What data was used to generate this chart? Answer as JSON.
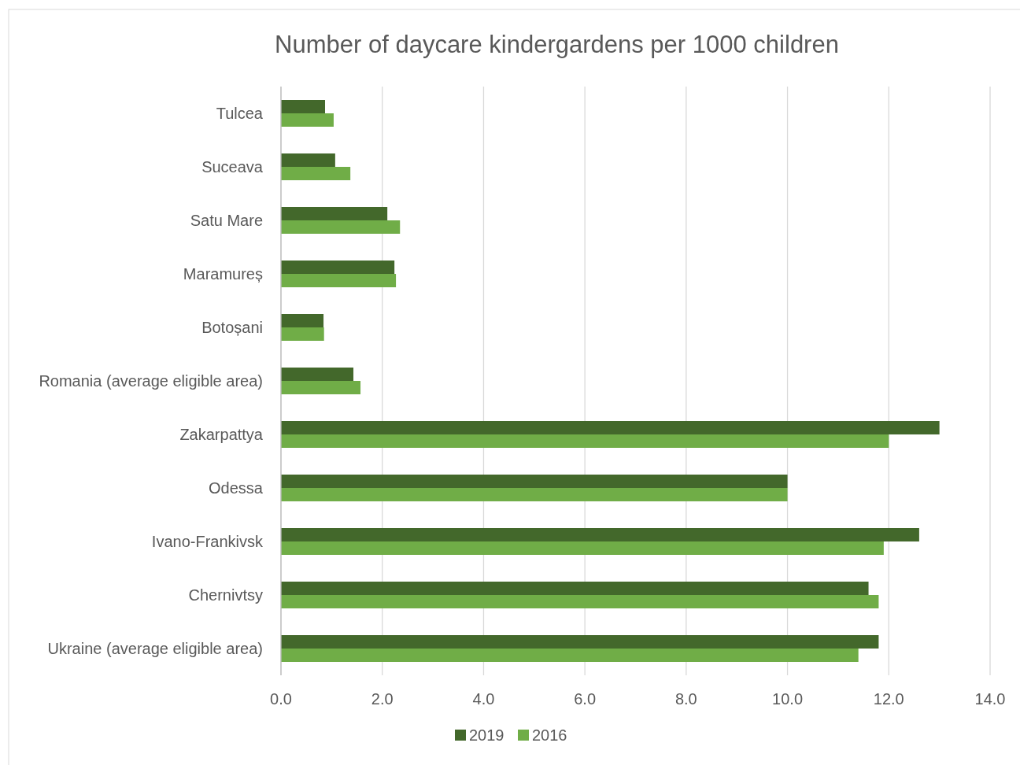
{
  "chart_data": {
    "type": "bar",
    "orientation": "horizontal",
    "title": "Number of daycare kindergardens per 1000 children",
    "categories": [
      "Tulcea",
      "Suceava",
      "Satu Mare",
      "Maramureș",
      "Botoșani",
      "Romania (average eligible area)",
      "Zakarpattya",
      "Odessa",
      "Ivano-Frankivsk",
      "Chernivtsy",
      "Ukraine (average eligible area)"
    ],
    "series": [
      {
        "name": "2019",
        "color": "#43682b",
        "values": [
          0.87,
          1.07,
          2.1,
          2.24,
          0.84,
          1.43,
          13.0,
          10.0,
          12.6,
          11.6,
          11.8
        ]
      },
      {
        "name": "2016",
        "color": "#70ad47",
        "values": [
          1.04,
          1.37,
          2.35,
          2.27,
          0.85,
          1.57,
          12.0,
          10.0,
          11.9,
          11.8,
          11.4
        ]
      }
    ],
    "xlim": [
      0,
      14
    ],
    "xticks": [
      {
        "value": 0,
        "label": "0.0"
      },
      {
        "value": 2,
        "label": "2.0"
      },
      {
        "value": 4,
        "label": "4.0"
      },
      {
        "value": 6,
        "label": "6.0"
      },
      {
        "value": 8,
        "label": "8.0"
      },
      {
        "value": 10,
        "label": "10.0"
      },
      {
        "value": 12,
        "label": "12.0"
      },
      {
        "value": 14,
        "label": "14.0"
      }
    ],
    "grid": "x",
    "legend": "bottom"
  }
}
